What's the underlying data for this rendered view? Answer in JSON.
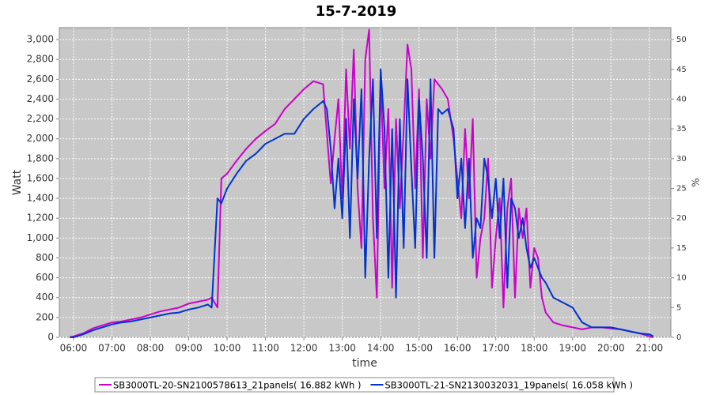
{
  "chart_data": {
    "type": "line",
    "title": "15-7-2019",
    "x_label": "time",
    "y_label": "Watt",
    "y2_label": "%",
    "x": [
      5.9,
      6,
      6.25,
      6.5,
      6.75,
      7,
      7.25,
      7.5,
      7.75,
      8,
      8.25,
      8.5,
      8.75,
      9,
      9.25,
      9.5,
      9.6,
      9.75,
      9.85,
      10,
      10.25,
      10.5,
      10.75,
      11,
      11.25,
      11.5,
      11.75,
      12,
      12.25,
      12.5,
      12.6,
      12.7,
      12.8,
      12.9,
      13,
      13.1,
      13.2,
      13.3,
      13.4,
      13.5,
      13.6,
      13.7,
      13.8,
      13.9,
      14,
      14.1,
      14.2,
      14.3,
      14.4,
      14.5,
      14.6,
      14.7,
      14.8,
      14.9,
      15,
      15.1,
      15.2,
      15.3,
      15.4,
      15.5,
      15.6,
      15.75,
      15.9,
      16,
      16.1,
      16.2,
      16.3,
      16.4,
      16.5,
      16.6,
      16.7,
      16.8,
      16.9,
      17,
      17.1,
      17.2,
      17.3,
      17.4,
      17.5,
      17.6,
      17.7,
      17.8,
      17.9,
      18,
      18.1,
      18.2,
      18.3,
      18.5,
      18.75,
      19,
      19.25,
      19.5,
      19.75,
      20,
      20.25,
      20.5,
      20.75,
      21,
      21.1
    ],
    "series": [
      {
        "name": "SB3000TL-20-SN2100578613_21panels( 16.882 kWh )",
        "color": "#cc00cc",
        "values": [
          0,
          10,
          40,
          90,
          120,
          150,
          160,
          180,
          200,
          230,
          260,
          280,
          300,
          340,
          360,
          380,
          400,
          300,
          1600,
          1650,
          1780,
          1900,
          2000,
          2080,
          2150,
          2300,
          2400,
          2500,
          2580,
          2550,
          2050,
          1550,
          2000,
          2400,
          1400,
          2700,
          1900,
          2900,
          1500,
          900,
          2800,
          3100,
          1200,
          400,
          2600,
          1500,
          2300,
          500,
          2200,
          1300,
          2100,
          2950,
          2700,
          1500,
          2500,
          800,
          2400,
          1800,
          2600,
          2550,
          2500,
          2400,
          2000,
          1600,
          1200,
          2100,
          1400,
          2200,
          600,
          1000,
          1200,
          1800,
          500,
          1000,
          1400,
          300,
          1300,
          1600,
          400,
          1300,
          1000,
          1300,
          500,
          900,
          800,
          400,
          250,
          150,
          120,
          100,
          80,
          100,
          100,
          90,
          80,
          60,
          40,
          10,
          0
        ]
      },
      {
        "name": "SB3000TL-21-SN2130032031_19panels( 16.058 kWh )",
        "color": "#0033cc",
        "values": [
          0,
          0,
          30,
          70,
          100,
          130,
          150,
          160,
          180,
          200,
          220,
          240,
          250,
          280,
          300,
          330,
          300,
          1400,
          1350,
          1500,
          1650,
          1780,
          1850,
          1950,
          2000,
          2050,
          2050,
          2200,
          2300,
          2380,
          2300,
          1900,
          1300,
          1800,
          1200,
          2200,
          1000,
          2400,
          1600,
          2500,
          600,
          1800,
          2600,
          1000,
          2700,
          2100,
          600,
          2100,
          400,
          2200,
          900,
          2600,
          1700,
          900,
          2400,
          1800,
          800,
          2600,
          800,
          2300,
          2250,
          2300,
          2100,
          1400,
          1800,
          1100,
          1800,
          800,
          1200,
          1100,
          1800,
          1600,
          1200,
          1600,
          1000,
          1600,
          500,
          1400,
          1300,
          1000,
          1200,
          900,
          700,
          800,
          700,
          600,
          550,
          400,
          350,
          300,
          150,
          100,
          100,
          100,
          80,
          60,
          40,
          30,
          10
        ]
      }
    ],
    "xlim": [
      5.63,
      21.56
    ],
    "xticks": [
      {
        "value": 6,
        "label": "06:00"
      },
      {
        "value": 7,
        "label": "07:00"
      },
      {
        "value": 8,
        "label": "08:00"
      },
      {
        "value": 9,
        "label": "09:00"
      },
      {
        "value": 10,
        "label": "10:00"
      },
      {
        "value": 11,
        "label": "11:00"
      },
      {
        "value": 12,
        "label": "12:00"
      },
      {
        "value": 13,
        "label": "13:00"
      },
      {
        "value": 14,
        "label": "14:00"
      },
      {
        "value": 15,
        "label": "15:00"
      },
      {
        "value": 16,
        "label": "16:00"
      },
      {
        "value": 17,
        "label": "17:00"
      },
      {
        "value": 18,
        "label": "18:00"
      },
      {
        "value": 19,
        "label": "19:00"
      },
      {
        "value": 20,
        "label": "20:00"
      },
      {
        "value": 21,
        "label": "21:00"
      }
    ],
    "ylim": [
      0,
      3120
    ],
    "yticks": [
      0,
      200,
      400,
      600,
      800,
      {
        "value": 1000,
        "label": "1,000"
      },
      {
        "value": 1200,
        "label": "1,200"
      },
      {
        "value": 1400,
        "label": "1,400"
      },
      {
        "value": 1600,
        "label": "1,600"
      },
      {
        "value": 1800,
        "label": "1,800"
      },
      {
        "value": 2000,
        "label": "2,000"
      },
      {
        "value": 2200,
        "label": "2,200"
      },
      {
        "value": 2400,
        "label": "2,400"
      },
      {
        "value": 2600,
        "label": "2,600"
      },
      {
        "value": 2800,
        "label": "2,800"
      },
      {
        "value": 3000,
        "label": "3,000"
      }
    ],
    "y2lim": [
      0,
      52
    ],
    "y2ticks": [
      0,
      5,
      10,
      15,
      20,
      25,
      30,
      35,
      40,
      45,
      50
    ],
    "grid": true,
    "legend": "bottom"
  }
}
